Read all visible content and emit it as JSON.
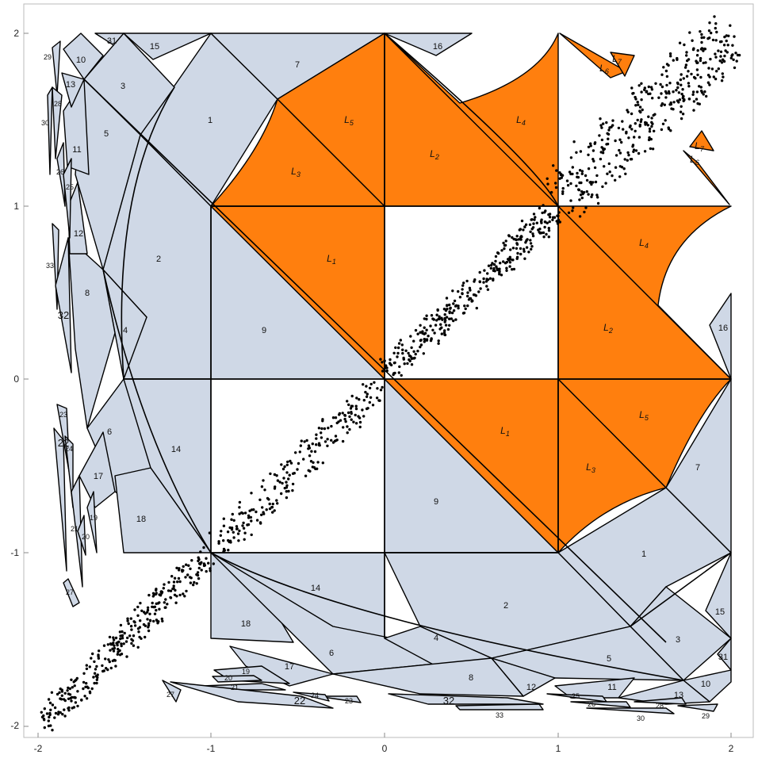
{
  "axes": {
    "x_range": [
      -2,
      2
    ],
    "y_range": [
      -2,
      2
    ],
    "x_ticks": [
      "-2",
      "-1",
      "0",
      "1",
      "2"
    ],
    "y_ticks": [
      "-2",
      "-1",
      "0",
      "1",
      "2"
    ]
  },
  "colors": {
    "gray_fill": "#cfd8e6",
    "orange_fill": "#ff7f0e",
    "edge": "#000000",
    "points": "#000000"
  },
  "labels": {
    "num": [
      "1",
      "2",
      "3",
      "4",
      "5",
      "6",
      "7",
      "8",
      "9",
      "10",
      "11",
      "12",
      "13",
      "14",
      "15",
      "16",
      "17",
      "18",
      "19",
      "20",
      "21",
      "22",
      "23",
      "24",
      "25",
      "26",
      "27",
      "28",
      "29",
      "30",
      "31",
      "32",
      "33"
    ],
    "L": [
      "1",
      "2",
      "3",
      "4",
      "5",
      "6",
      "7"
    ],
    "L_letter": "L"
  }
}
